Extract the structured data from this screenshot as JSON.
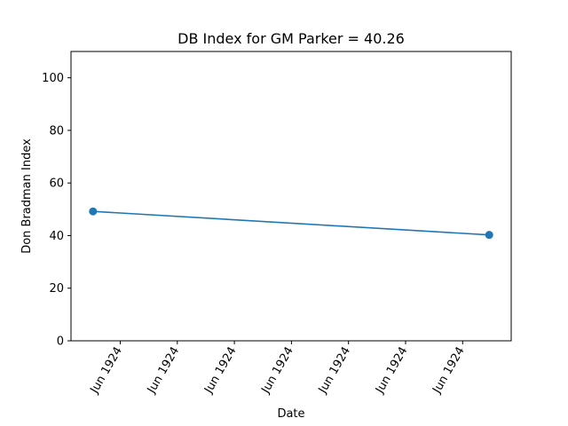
{
  "chart_data": {
    "type": "line",
    "title": "DB Index for GM Parker = 40.26",
    "xlabel": "Date",
    "ylabel": "Don Bradman Index",
    "ylim": [
      0,
      110
    ],
    "yticks": [
      0,
      20,
      40,
      60,
      80,
      100
    ],
    "xticks": [
      "Jun 1924",
      "Jun 1924",
      "Jun 1924",
      "Jun 1924",
      "Jun 1924",
      "Jun 1924",
      "Jun 1924"
    ],
    "grid": false,
    "series": [
      {
        "color": "#1f77b4",
        "marker": "circle",
        "x": [
          "1924-06-14",
          "1924-06-21"
        ],
        "y": [
          49.2,
          40.26
        ]
      }
    ]
  }
}
